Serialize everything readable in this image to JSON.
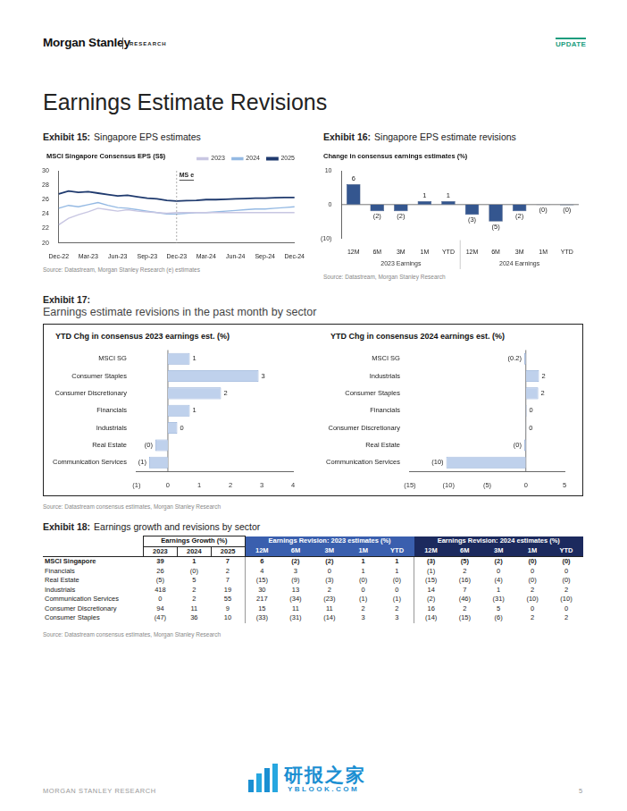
{
  "header": {
    "brand": "Morgan Stanley",
    "section": "RESEARCH",
    "tag": "UPDATE"
  },
  "title": "Earnings Estimate Revisions",
  "exhibits": [
    {
      "label": "Exhibit 15:",
      "caption": "Singapore EPS estimates",
      "source": "Source: Datastream, Morgan Stanley Research (e) estimates"
    },
    {
      "label": "Exhibit 16:",
      "caption": "Singapore EPS estimate revisions",
      "source": "Source: Datastream, Morgan Stanley Research"
    },
    {
      "label": "Exhibit 17:",
      "caption": "Earnings estimate revisions in the past month by sector",
      "source": "Source: Datastream consensus estimates, Morgan Stanley Research"
    },
    {
      "label": "Exhibit 18:",
      "caption": "Earnings growth and revisions by sector",
      "source": "Source: Datastream consensus estimates, Morgan Stanley Research"
    }
  ],
  "chart_data": [
    {
      "type": "line",
      "title": "MSCI Singapore Consensus EPS (S$)",
      "categories": [
        "Dec-22",
        null,
        null,
        "Mar-23",
        null,
        null,
        "Jun-23",
        null,
        null,
        "Sep-23",
        null,
        null,
        "Dec-23",
        null,
        null,
        "Mar-24",
        null,
        null,
        "Jun-24",
        null,
        null,
        "Sep-24",
        null,
        null,
        "Dec-24"
      ],
      "series": [
        {
          "name": "2023",
          "color": "#c8c6e2",
          "values": [
            22.5,
            23.4,
            23.9,
            24.3,
            24.8,
            24.6,
            24.4,
            24.6,
            24.4,
            24.3,
            24.2,
            24.1,
            24.2,
            24.2,
            24.2,
            24.2,
            24.2,
            24.2,
            24.2,
            24.2,
            24.2,
            24.2,
            24.2,
            24.2,
            24.2
          ]
        },
        {
          "name": "2024",
          "color": "#94b9e3",
          "values": [
            24.8,
            25.2,
            25.0,
            25.3,
            25.6,
            25.2,
            24.9,
            24.8,
            24.6,
            24.4,
            24.2,
            24.0,
            24.0,
            24.1,
            24.2,
            24.2,
            24.3,
            24.4,
            24.5,
            24.6,
            24.7,
            24.7,
            24.8,
            24.9,
            25.0
          ]
        },
        {
          "name": "2025",
          "color": "#1f3a6e",
          "values": [
            26.8,
            27.2,
            27.0,
            27.1,
            26.9,
            26.7,
            26.5,
            26.6,
            26.4,
            26.2,
            26.1,
            25.9,
            25.8,
            25.85,
            25.9,
            26.0,
            26.0,
            26.05,
            26.1,
            26.15,
            26.2,
            26.2,
            26.25,
            26.3,
            26.3
          ]
        }
      ],
      "ylim": [
        20,
        30
      ],
      "yticks": [
        20,
        22,
        24,
        26,
        28,
        30
      ],
      "grid": false,
      "legend": "top-right",
      "annotations": [
        {
          "text": "MS e",
          "x": "Dec-23"
        }
      ]
    },
    {
      "type": "bar",
      "title": "Change in consensus earnings estimates (%)",
      "categories": [
        "12M",
        "6M",
        "3M",
        "1M",
        "YTD",
        "12M",
        "6M",
        "3M",
        "1M",
        "YTD"
      ],
      "group_labels": [
        "2023 Earnings",
        "2024 Earnings"
      ],
      "values": [
        6,
        -2,
        -2,
        1,
        1,
        -3,
        -5,
        -2,
        -0.1,
        -0.2
      ],
      "value_labels": [
        "6",
        "(2)",
        "(2)",
        "1",
        "1",
        "(3)",
        "(5)",
        "(2)",
        "(0)",
        "(0)"
      ],
      "color": "#34568f",
      "ylim": [
        -10,
        10
      ],
      "yticks": [
        {
          "value": -10,
          "label": "(10)"
        },
        0,
        10
      ],
      "grid": false,
      "data_labels": true
    },
    {
      "type": "bar",
      "orientation": "horizontal",
      "title": "YTD Chg in consensus 2023 earnings est. (%)",
      "categories": [
        "MSCI SG",
        "Consumer Staples",
        "Consumer Discretionary",
        "Financials",
        "Industrials",
        "Real Estate",
        "Communication Services"
      ],
      "values": [
        0.7,
        2.9,
        1.7,
        0.7,
        0.3,
        -0.4,
        -0.6
      ],
      "value_labels": [
        "1",
        "3",
        "2",
        "1",
        "0",
        "(0)",
        "(1)"
      ],
      "color": "#bfd1ec",
      "xlim": [
        -1,
        4
      ],
      "xticks": [
        {
          "value": -1,
          "label": "(1)"
        },
        0,
        1,
        2,
        3,
        4
      ],
      "grid": false,
      "data_labels": true
    },
    {
      "type": "bar",
      "orientation": "horizontal",
      "title": "YTD Chg in consensus 2024 earnings est. (%)",
      "categories": [
        "MSCI SG",
        "Industrials",
        "Consumer Staples",
        "Financials",
        "Consumer Discretionary",
        "Real Estate",
        "Communication Services"
      ],
      "values": [
        -0.2,
        1.7,
        1.6,
        0.1,
        0.05,
        -0.2,
        -10.3
      ],
      "value_labels": [
        "(0.2)",
        "2",
        "2",
        "0",
        "0",
        "(0)",
        "(10)"
      ],
      "color": "#bfd1ec",
      "xlim": [
        -15,
        5
      ],
      "xticks": [
        {
          "value": -15,
          "label": "(15)"
        },
        {
          "value": -10,
          "label": "(10)"
        },
        {
          "value": -5,
          "label": "(5)"
        },
        0,
        5
      ],
      "grid": false,
      "data_labels": true
    }
  ],
  "table": {
    "group_headers": [
      "Earnings Growth (%)",
      "Earnings Revision: 2023 estimates (%)",
      "Earnings Revision: 2024 estimates (%)"
    ],
    "columns": [
      [
        "2023",
        "2024",
        "2025"
      ],
      [
        "12M",
        "6M",
        "3M",
        "1M",
        "YTD"
      ],
      [
        "12M",
        "6M",
        "3M",
        "1M",
        "YTD"
      ]
    ],
    "rows": [
      {
        "label": "MSCI Singapore",
        "cells": [
          "39",
          "1",
          "7",
          "6",
          "(2)",
          "(2)",
          "1",
          "1",
          "(3)",
          "(5)",
          "(2)",
          "(0)",
          "(0)"
        ]
      },
      {
        "label": "Financials",
        "cells": [
          "26",
          "(0)",
          "2",
          "4",
          "3",
          "0",
          "1",
          "1",
          "(1)",
          "2",
          "0",
          "0",
          "0"
        ]
      },
      {
        "label": "Real Estate",
        "cells": [
          "(5)",
          "5",
          "7",
          "(15)",
          "(9)",
          "(3)",
          "(0)",
          "(0)",
          "(15)",
          "(16)",
          "(4)",
          "(0)",
          "(0)"
        ]
      },
      {
        "label": "Industrials",
        "cells": [
          "418",
          "2",
          "19",
          "30",
          "13",
          "2",
          "0",
          "0",
          "14",
          "7",
          "1",
          "2",
          "2"
        ]
      },
      {
        "label": "Communication Services",
        "cells": [
          "0",
          "2",
          "55",
          "217",
          "(34)",
          "(23)",
          "(1)",
          "(1)",
          "(2)",
          "(46)",
          "(31)",
          "(10)",
          "(10)"
        ]
      },
      {
        "label": "Consumer Discretionary",
        "cells": [
          "94",
          "11",
          "9",
          "15",
          "11",
          "11",
          "2",
          "2",
          "16",
          "2",
          "5",
          "0",
          "0"
        ]
      },
      {
        "label": "Consumer Staples",
        "cells": [
          "(47)",
          "36",
          "10",
          "(33)",
          "(31)",
          "(14)",
          "3",
          "3",
          "(14)",
          "(15)",
          "(6)",
          "2",
          "2"
        ]
      }
    ]
  },
  "watermark": {
    "cn": "研报之家",
    "en": "YBLOOK.COM"
  },
  "footer": {
    "left": "MORGAN STANLEY RESEARCH",
    "page": "5"
  }
}
